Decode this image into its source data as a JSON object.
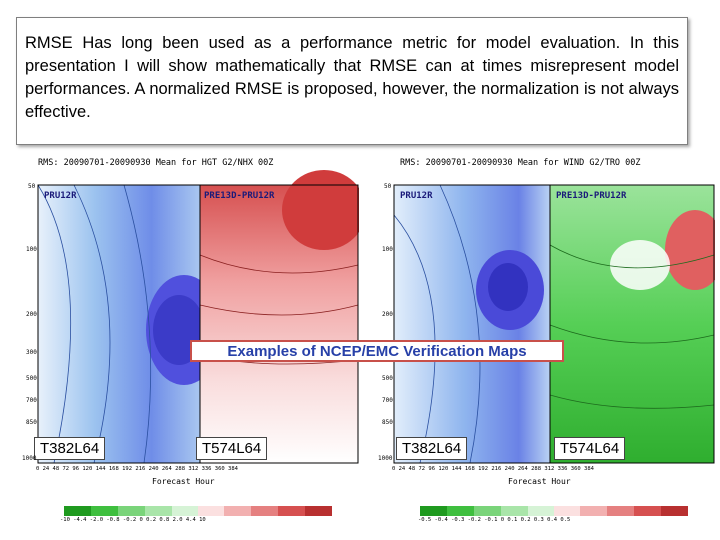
{
  "text_block": "RMSE Has long been used as a performance metric for model evaluation.  In this presentation I will show mathematically that RMSE can at times misrepresent model performances.  A normalized RMSE is proposed, however, the normalization is not always effective.",
  "caption": "Examples of NCEP/EMC Verification Maps",
  "left_panel": {
    "title": "RMS: 20090701-20090930 Mean for HGT G2/NHX 00Z",
    "sub_left": "PRU12R",
    "sub_right": "PRE13D-PRU12R",
    "tag_left": "T382L64",
    "tag_right": "T574L64",
    "xlabel": "Forecast Hour",
    "xticks": "0   24  48  72  96 120 144 168 192 216 240 264 288 312 336 360 384",
    "yticks": [
      "50",
      "100",
      "200",
      "300",
      "500",
      "700",
      "850",
      "1000"
    ],
    "colorbar_labels": "-10  -4.4  -2.0  -0.8  -0.2   0   0.2  0.8  2.0  4.4  10"
  },
  "right_panel": {
    "title": "RMS: 20090701-20090930 Mean for WIND G2/TRO 00Z",
    "sub_left": "PRU12R",
    "sub_right": "PRE13D-PRU12R",
    "tag_left": "T382L64",
    "tag_right": "T574L64",
    "xlabel": "Forecast Hour",
    "xticks": "0   24  48  72  96 120 144 168 192 216 240 264 288 312 336 360 384",
    "yticks": [
      "50",
      "100",
      "200",
      "300",
      "500",
      "700",
      "850",
      "1000"
    ],
    "colorbar_labels": "-0.5  -0.4  -0.3  -0.2  -0.1   0   0.1  0.2  0.3  0.4  0.5"
  },
  "colors": {
    "blue_dark": "#3b3bd9",
    "blue_light": "#cfe4f7",
    "red": "#d94a4a",
    "green": "#3fbf3f",
    "caption_text": "#2740a8",
    "caption_border": "#c8504a"
  }
}
